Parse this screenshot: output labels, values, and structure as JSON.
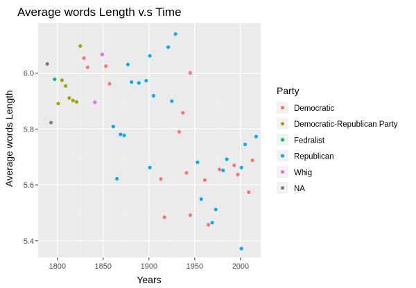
{
  "chart_data": {
    "type": "scatter",
    "title": "Average words Length v.s Time",
    "xlabel": "Years",
    "ylabel": "Average words Length",
    "xlim": [
      1779,
      2022
    ],
    "ylim": [
      5.34,
      6.18
    ],
    "xticks": [
      1800,
      1850,
      1900,
      1950,
      2000
    ],
    "yticks": [
      5.4,
      5.6,
      5.8,
      6.0
    ],
    "xtick_labels": [
      "1800",
      "1850",
      "1900",
      "1950",
      "2000"
    ],
    "ytick_labels": [
      "5.4",
      "5.6",
      "5.8",
      "6.0"
    ],
    "grid": true,
    "legend_position": "right",
    "legend_title": "Party",
    "series": [
      {
        "name": "Democratic",
        "color": "#F8766D",
        "points": [
          [
            1829,
            6.054
          ],
          [
            1833,
            6.021
          ],
          [
            1853,
            6.025
          ],
          [
            1857,
            5.962
          ],
          [
            1913,
            5.621
          ],
          [
            1917,
            5.484
          ],
          [
            1933,
            5.79
          ],
          [
            1937,
            5.858
          ],
          [
            1941,
            5.643
          ],
          [
            1945,
            6.001
          ],
          [
            1945,
            5.492
          ],
          [
            1961,
            5.617
          ],
          [
            1965,
            5.457
          ],
          [
            1977,
            5.655
          ],
          [
            1993,
            5.67
          ],
          [
            1997,
            5.637
          ],
          [
            2009,
            5.574
          ],
          [
            2013,
            5.688
          ]
        ]
      },
      {
        "name": "Democratic-Republican Party",
        "color": "#A3A500",
        "points": [
          [
            1801,
            5.891
          ],
          [
            1805,
            5.975
          ],
          [
            1809,
            5.954
          ],
          [
            1813,
            5.911
          ],
          [
            1817,
            5.902
          ],
          [
            1821,
            5.897
          ],
          [
            1825,
            6.097
          ]
        ]
      },
      {
        "name": "Fedralist",
        "color": "#00BF7D",
        "points": [
          [
            1797,
            5.978
          ]
        ]
      },
      {
        "name": "Republican",
        "color": "#00B0F6",
        "points": [
          [
            1861,
            5.809
          ],
          [
            1865,
            5.622
          ],
          [
            1869,
            5.781
          ],
          [
            1873,
            5.777
          ],
          [
            1877,
            6.031
          ],
          [
            1881,
            5.968
          ],
          [
            1889,
            5.965
          ],
          [
            1897,
            5.973
          ],
          [
            1901,
            6.062
          ],
          [
            1901,
            5.662
          ],
          [
            1905,
            5.919
          ],
          [
            1921,
            6.093
          ],
          [
            1925,
            5.9
          ],
          [
            1929,
            6.14
          ],
          [
            1953,
            5.681
          ],
          [
            1957,
            5.549
          ],
          [
            1969,
            5.465
          ],
          [
            1973,
            5.512
          ],
          [
            1981,
            5.652
          ],
          [
            1985,
            5.692
          ],
          [
            2001,
            5.662
          ],
          [
            2001,
            5.372
          ],
          [
            2005,
            5.745
          ],
          [
            2017,
            5.773
          ]
        ]
      },
      {
        "name": "Whig",
        "color": "#E76BF3",
        "points": [
          [
            1841,
            5.896
          ],
          [
            1849,
            6.067
          ]
        ]
      },
      {
        "name": "NA",
        "color": "#7F7F7F",
        "points": [
          [
            1789,
            6.033
          ],
          [
            1793,
            5.823
          ]
        ]
      }
    ]
  }
}
